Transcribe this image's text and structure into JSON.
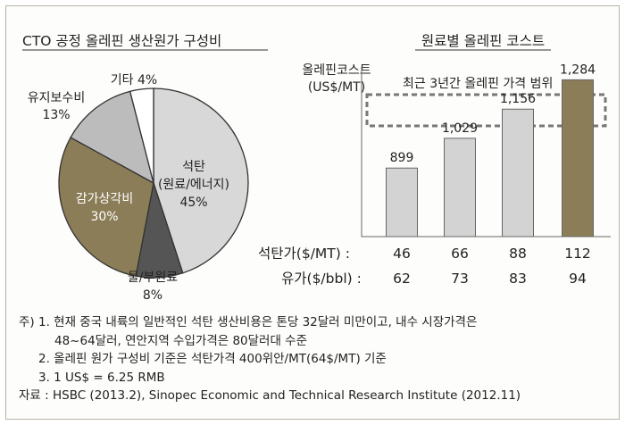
{
  "pie": {
    "title": "CTO 공정 올레핀 생산원가 구성비",
    "colors": {
      "coal": "#d8d8d8",
      "depreciation": "#8b7d57",
      "maintenance": "#bcbcbc",
      "water": "#555555",
      "other": "#ffffff",
      "stroke": "#333333"
    },
    "labels": {
      "coal_name": "석탄",
      "coal_sub": "(원료/에너지)",
      "coal_pct": "45%",
      "dep_name": "감가상각비",
      "dep_pct": "30%",
      "maint_name": "유지보수비",
      "maint_pct": "13%",
      "water_name": "물/부원료",
      "water_pct": "8%",
      "other_label": "기타 4%"
    }
  },
  "bar": {
    "title": "원료별 올레핀 코스트",
    "ylabel_line1": "올레핀코스트",
    "ylabel_line2": "(US$/MT)",
    "range_label": "최근 3년간 올레핀 가격 범위",
    "colors": {
      "bar": "#d3d3d3",
      "highlight": "#8b7d57",
      "frame": "#666666"
    },
    "row1_label": "석탄가($/MT) :",
    "row2_label": "유가($/bbl) :"
  },
  "chart_data": [
    {
      "type": "pie",
      "title": "CTO 공정 올레핀 생산원가 구성비",
      "slices": [
        {
          "label": "석탄 (원료/에너지)",
          "value": 45
        },
        {
          "label": "물/부원료",
          "value": 8
        },
        {
          "label": "감가상각비",
          "value": 30
        },
        {
          "label": "유지보수비",
          "value": 13
        },
        {
          "label": "기타",
          "value": 4
        }
      ]
    },
    {
      "type": "bar",
      "title": "원료별 올레핀 코스트",
      "ylabel": "올레핀코스트 (US$/MT)",
      "values": [
        899,
        1029,
        1156,
        1284
      ],
      "data_labels": [
        "899",
        "1,029",
        "1,156",
        "1,284"
      ],
      "coal_price_labels": [
        "46",
        "66",
        "88",
        "112"
      ],
      "oil_price_labels": [
        "62",
        "73",
        "83",
        "94"
      ],
      "annotation": "최근 3년간 올레핀 가격 범위"
    }
  ],
  "notes": {
    "line1": "주) 1. 현재 중국 내륙의 일반적인 석탄 생산비용은 톤당 32달러 미만이고, 내수 시장가격은",
    "line2": "48~64달러, 연안지역 수입가격은 80달러대 수준",
    "line3": "2. 올레핀 원가 구성비 기준은 석탄가격 400위안/MT(64$/MT) 기준",
    "line4": "3. 1 US$ = 6.25 RMB",
    "source": "자료 : HSBC (2013.2), Sinopec Economic and Technical Research Institute (2012.11)"
  }
}
